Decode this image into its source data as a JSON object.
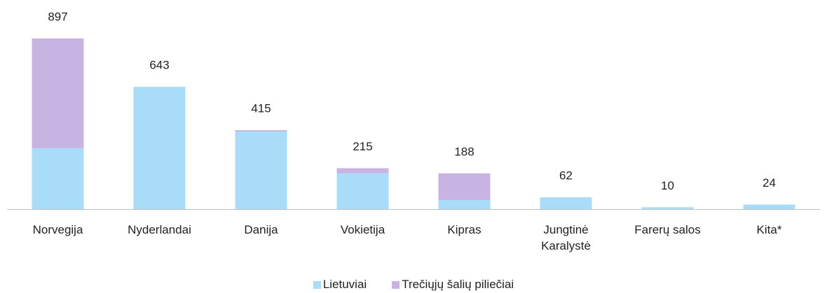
{
  "chart_data": {
    "type": "stacked-bar",
    "categories": [
      "Norvegija",
      "Nyderlandai",
      "Danija",
      "Vokietija",
      "Kipras",
      "Jungtinė Karalystė",
      "Farerų salos",
      "Kita*"
    ],
    "series": [
      {
        "name": "Lietuviai",
        "color": "#a9dcf8",
        "values": [
          320,
          643,
          408,
          188,
          48,
          62,
          10,
          24
        ]
      },
      {
        "name": "Trečiųjų šalių piliečiai",
        "color": "#c8b4e3",
        "values": [
          577,
          0,
          7,
          27,
          140,
          0,
          0,
          0
        ]
      }
    ],
    "totals": [
      "897",
      "643",
      "415",
      "215",
      "188",
      "62",
      "10",
      "24"
    ],
    "ylim": [
      0,
      1000
    ]
  }
}
